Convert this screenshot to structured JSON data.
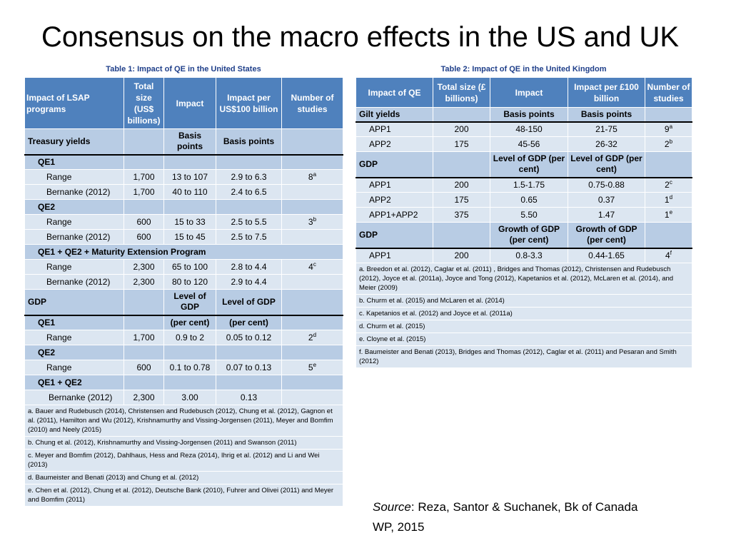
{
  "title": "Consensus on the macro effects in the US and UK",
  "us_table": {
    "caption": "Table 1: Impact of QE in the United States",
    "headers": [
      "Impact of LSAP programs",
      "Total size (US$ billions)",
      "Impact",
      "Impact per US$100 billion",
      "Number of studies"
    ],
    "treasury_label": "Treasury yields",
    "treasury_impact_unit": "Basis points",
    "treasury_per100_unit": "Basis points",
    "qe1_label": "QE1",
    "qe1_range": {
      "label": "Range",
      "size": "1,700",
      "impact": "13 to 107",
      "per100": "2.9 to 6.3",
      "studies": "8",
      "note": "a"
    },
    "qe1_bernanke": {
      "label": "Bernanke (2012)",
      "size": "1,700",
      "impact": "40 to 110",
      "per100": "2.4 to 6.5"
    },
    "qe2_label": "QE2",
    "qe2_range": {
      "label": "Range",
      "size": "600",
      "impact": "15 to 33",
      "per100": "2.5 to 5.5",
      "studies": "3",
      "note": "b"
    },
    "qe2_bernanke": {
      "label": "Bernanke (2012)",
      "size": "600",
      "impact": "15 to 45",
      "per100": "2.5 to 7.5"
    },
    "mep_label": "QE1 + QE2 + Maturity Extension Program",
    "mep_range": {
      "label": "Range",
      "size": "2,300",
      "impact": "65 to 100",
      "per100": "2.8 to 4.4",
      "studies": "4",
      "note": "c"
    },
    "mep_bernanke": {
      "label": "Bernanke (2012)",
      "size": "2,300",
      "impact": "80 to 120",
      "per100": "2.9 to 4.4"
    },
    "gdp_label": "GDP",
    "gdp_impact_unit": "Level of GDP",
    "gdp_per100_unit": "Level of GDP",
    "gdp_qe1_label": "QE1",
    "gdp_qe1_impact_unit": "(per cent)",
    "gdp_qe1_per100_unit": "(per cent)",
    "gdp_qe1_range": {
      "label": "Range",
      "size": "1,700",
      "impact": "0.9 to 2",
      "per100": "0.05 to 0.12",
      "studies": "2",
      "note": "d"
    },
    "gdp_qe2_label": "QE2",
    "gdp_qe2_range": {
      "label": "Range",
      "size": "600",
      "impact": "0.1 to 0.78",
      "per100": "0.07 to 0.13",
      "studies": "5",
      "note": "e"
    },
    "gdp_qe12_label": "QE1 + QE2",
    "gdp_qe12_bernanke": {
      "label": "Bernanke (2012)",
      "size": "2,300",
      "impact": "3.00",
      "per100": "0.13"
    },
    "notes": [
      "a. Bauer and Rudebusch (2014), Christensen and Rudebusch (2012), Chung et al. (2012), Gagnon et al. (2011), Hamilton and Wu (2012), Krishnamurthy and Vissing-Jorgensen (2011), Meyer and Bomfim (2010) and Neely (2015)",
      "b. Chung et al. (2012), Krishnamurthy and Vissing-Jorgensen (2011) and Swanson (2011)",
      "c. Meyer and Bomfim (2012), Dahlhaus, Hess and Reza (2014), Ihrig et al. (2012) and Li and Wei (2013)",
      "d. Baumeister and Benati (2013) and Chung et al. (2012)",
      "e. Chen et al. (2012), Chung et al. (2012), Deutsche Bank (2010), Fuhrer and Olivei (2011) and Meyer and Bomfim (2011)"
    ]
  },
  "uk_table": {
    "caption": "Table 2: Impact of QE in the United Kingdom",
    "headers": [
      "Impact of QE",
      "Total size (£ billions)",
      "Impact",
      "Impact per £100 billion",
      "Number of studies"
    ],
    "gilt_label": "Gilt yields",
    "gilt_impact_unit": "Basis points",
    "gilt_per100_unit": "Basis points",
    "gilt_app1": {
      "label": "APP1",
      "size": "200",
      "impact": "48-150",
      "per100": "21-75",
      "studies": "9",
      "note": "a"
    },
    "gilt_app2": {
      "label": "APP2",
      "size": "175",
      "impact": "45-56",
      "per100": "26-32",
      "studies": "2",
      "note": "b"
    },
    "gdp_label": "GDP",
    "gdp_impact_unit": "Level of GDP (per cent)",
    "gdp_per100_unit": "Level of GDP (per cent)",
    "gdp_app1": {
      "label": "APP1",
      "size": "200",
      "impact": "1.5-1.75",
      "per100": "0.75-0.88",
      "studies": "2",
      "note": "c"
    },
    "gdp_app2": {
      "label": "APP2",
      "size": "175",
      "impact": "0.65",
      "per100": "0.37",
      "studies": "1",
      "note": "d"
    },
    "gdp_app12": {
      "label": "APP1+APP2",
      "size": "375",
      "impact": "5.50",
      "per100": "1.47",
      "studies": "1",
      "note": "e"
    },
    "growth_label": "GDP",
    "growth_impact_unit": "Growth of GDP (per cent)",
    "growth_per100_unit": "Growth of GDP (per cent)",
    "growth_app1": {
      "label": "APP1",
      "size": "200",
      "impact": "0.8-3.3",
      "per100": "0.44-1.65",
      "studies": "4",
      "note": "f"
    },
    "notes": [
      "a. Breedon et al. (2012), Caglar et al. (2011) , Bridges and Thomas (2012), Christensen and Rudebusch (2012), Joyce et al. (2011a), Joyce and Tong (2012), Kapetanios et al. (2012), McLaren et al. (2014), and Meier (2009)",
      "b. Churm et al. (2015) and McLaren et al. (2014)",
      "c. Kapetanios et al. (2012) and Joyce et al. (2011a)",
      "d. Churm et al. (2015)",
      "e. Cloyne et al. (2015)",
      "f. Baumeister and Benati (2013), Bridges and Thomas (2012), Caglar et al. (2011) and Pesaran and Smith (2012)"
    ]
  },
  "source": {
    "label": "Source",
    "text": ": Reza, Santor & Suchanek, Bk of Canada WP, 2015"
  }
}
